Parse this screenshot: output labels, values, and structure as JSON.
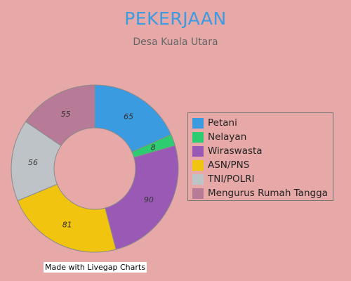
{
  "chart_data": {
    "type": "pie",
    "title": "PEKERJAAN",
    "subtitle": "Desa Kuala Utara",
    "categories": [
      "Petani",
      "Nelayan",
      "Wiraswasta",
      "ASN/PNS",
      "TNI/POLRI",
      "Mengurus Rumah Tangga"
    ],
    "values": [
      65,
      8,
      90,
      81,
      56,
      55
    ],
    "colors": [
      "#3b9be0",
      "#2ecc71",
      "#9b59b6",
      "#f1c40f",
      "#bdc3c7",
      "#b77b97"
    ],
    "legend_position": "right"
  },
  "credit": "Made with Livegap Charts"
}
